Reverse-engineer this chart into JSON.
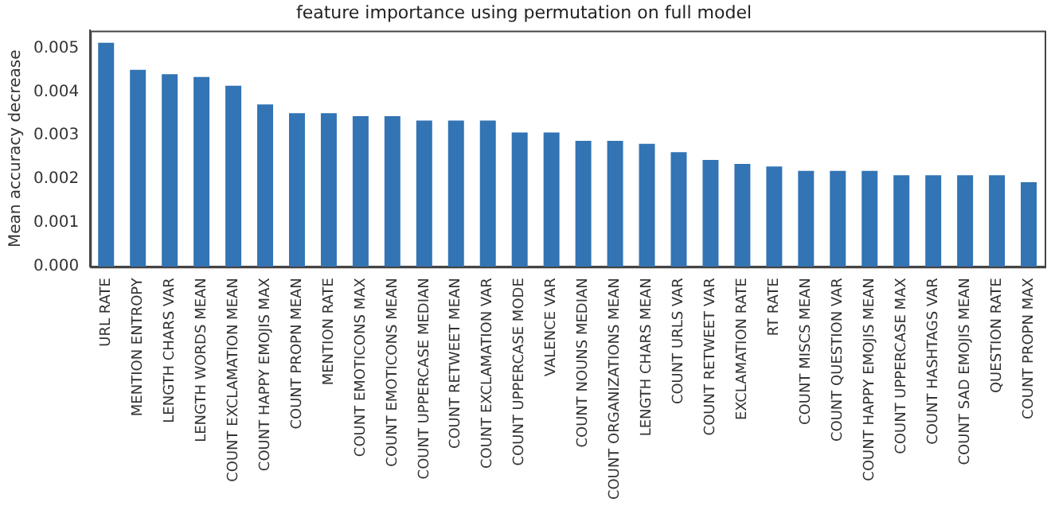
{
  "chart_data": {
    "type": "bar",
    "title": "feature importance using permutation on full model",
    "ylabel": "Mean accuracy decrease",
    "categories": [
      "URL RATE",
      "MENTION ENTROPY",
      "LENGTH CHARS VAR",
      "LENGTH WORDS MEAN",
      "COUNT EXCLAMATION MEAN",
      "COUNT HAPPY EMOJIS MAX",
      "COUNT PROPN MEAN",
      "MENTION RATE",
      "COUNT EMOTICONS MAX",
      "COUNT EMOTICONS MEAN",
      "COUNT UPPERCASE MEDIAN",
      "COUNT RETWEET MEAN",
      "COUNT EXCLAMATION VAR",
      "COUNT UPPERCASE MODE",
      "VALENCE VAR",
      "COUNT NOUNS MEDIAN",
      "COUNT ORGANIZATIONS MEAN",
      "LENGTH CHARS MEAN",
      "COUNT URLS VAR",
      "COUNT RETWEET VAR",
      "EXCLAMATION RATE",
      "RT RATE",
      "COUNT MISCS MEAN",
      "COUNT QUESTION VAR",
      "COUNT HAPPY EMOJIS MEAN",
      "COUNT UPPERCASE MAX",
      "COUNT HASHTAGS VAR",
      "COUNT SAD EMOJIS MEAN",
      "QUESTION RATE",
      "COUNT PROPN MAX"
    ],
    "values": [
      0.00512,
      0.0045,
      0.0044,
      0.00434,
      0.00414,
      0.00371,
      0.00351,
      0.00351,
      0.00344,
      0.00344,
      0.00334,
      0.00334,
      0.00334,
      0.00307,
      0.00307,
      0.00288,
      0.00288,
      0.00281,
      0.00262,
      0.00244,
      0.00235,
      0.00229,
      0.00219,
      0.00219,
      0.00219,
      0.00209,
      0.00209,
      0.00209,
      0.00209,
      0.00193
    ],
    "color": "#3274b4",
    "ylim": [
      0,
      0.0054
    ],
    "yticks": [
      {
        "value": 0,
        "label": "0.000"
      },
      {
        "value": 0.001,
        "label": "0.001"
      },
      {
        "value": 0.002,
        "label": "0.002"
      },
      {
        "value": 0.003,
        "label": "0.003"
      },
      {
        "value": 0.004,
        "label": "0.004"
      },
      {
        "value": 0.005,
        "label": "0.005"
      }
    ],
    "grid": false,
    "legend": false
  }
}
